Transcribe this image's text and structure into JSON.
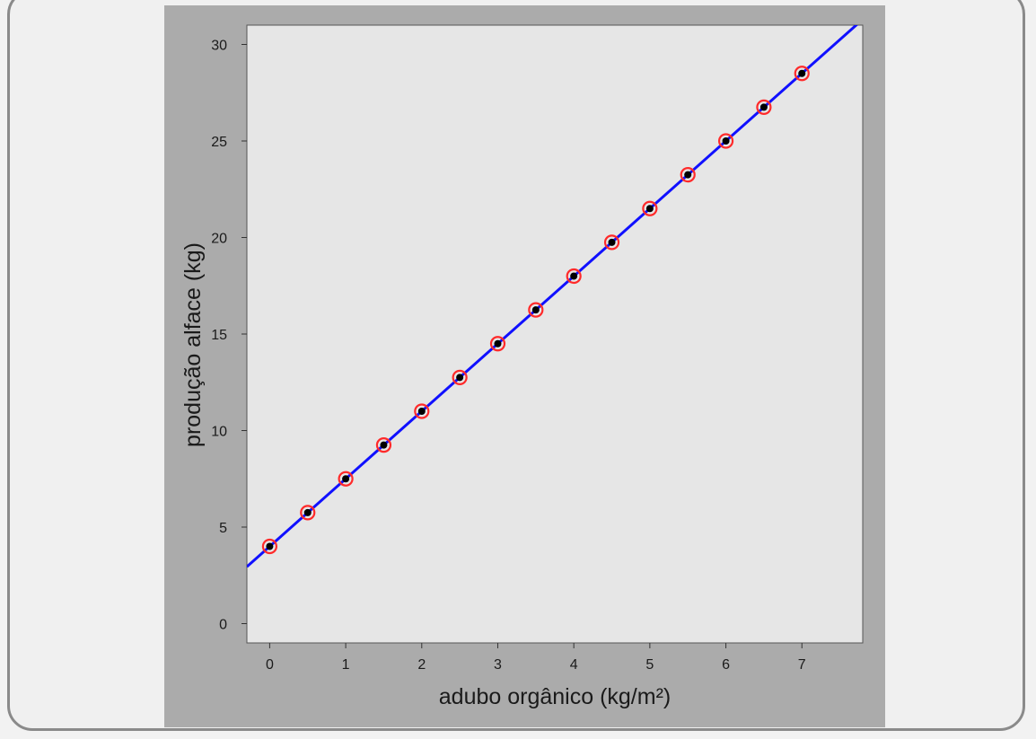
{
  "colors": {
    "page_background": "#f0f0f0",
    "figure_background": "#ababab",
    "plot_background": "#e6e6e6",
    "fit_line": "#1010ff",
    "marker_ring": "#ff2a2a",
    "marker_dot": "#000000"
  },
  "chart_data": {
    "type": "scatter",
    "title": "",
    "xlabel": "adubo orgânico (kg/m²)",
    "ylabel": "produção alface (kg)",
    "xlim": [
      -0.3,
      7.8
    ],
    "ylim": [
      -1,
      31
    ],
    "x_ticks": [
      0,
      1,
      2,
      3,
      4,
      5,
      6,
      7
    ],
    "y_ticks": [
      0,
      5,
      10,
      15,
      20,
      25,
      30
    ],
    "grid": false,
    "legend": "none",
    "series": [
      {
        "marker": "black dot with red ring",
        "x": [
          0,
          0.5,
          1,
          1.5,
          2,
          2.5,
          3,
          3.5,
          4,
          4.5,
          5,
          5.5,
          6,
          6.5,
          7
        ],
        "y": [
          4.0,
          5.75,
          7.5,
          9.25,
          11.0,
          12.75,
          14.5,
          16.25,
          18.0,
          19.75,
          21.5,
          23.25,
          25.0,
          26.75,
          28.5
        ]
      }
    ],
    "fit_line": {
      "intercept": 4.0,
      "slope": 3.5
    }
  }
}
